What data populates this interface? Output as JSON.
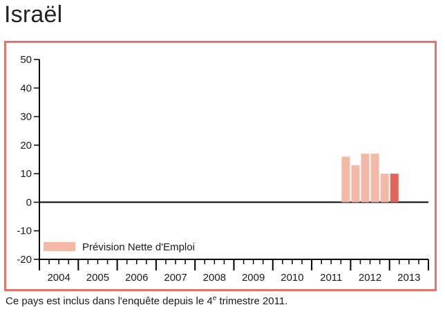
{
  "header": {
    "title": "Israël"
  },
  "chart_data": {
    "type": "bar",
    "ylim": [
      -20,
      50
    ],
    "yticks": [
      50,
      40,
      30,
      20,
      10,
      0,
      -10,
      -20
    ],
    "years": [
      "2004",
      "2005",
      "2006",
      "2007",
      "2008",
      "2009",
      "2010",
      "2011",
      "2012",
      "2013"
    ],
    "x_unit": "quarter",
    "series": [
      {
        "name": "Prévision Nette d'Emploi",
        "color": "#f4b8a7",
        "highlight_color": "#e4635a",
        "values": [
          {
            "year": "2011",
            "quarter": 4,
            "value": 16
          },
          {
            "year": "2012",
            "quarter": 1,
            "value": 13
          },
          {
            "year": "2012",
            "quarter": 2,
            "value": 17
          },
          {
            "year": "2012",
            "quarter": 3,
            "value": 17
          },
          {
            "year": "2012",
            "quarter": 4,
            "value": 10
          },
          {
            "year": "2013",
            "quarter": 1,
            "value": 10,
            "highlight": true
          }
        ]
      }
    ],
    "legend": {
      "position": "bottom-left",
      "label": "Prévision Nette d'Emploi"
    }
  },
  "footnote": {
    "text_before": "Ce pays est inclus dans l'enquête depuis le 4",
    "superscript": "e",
    "text_after": " trimestre 2011."
  }
}
